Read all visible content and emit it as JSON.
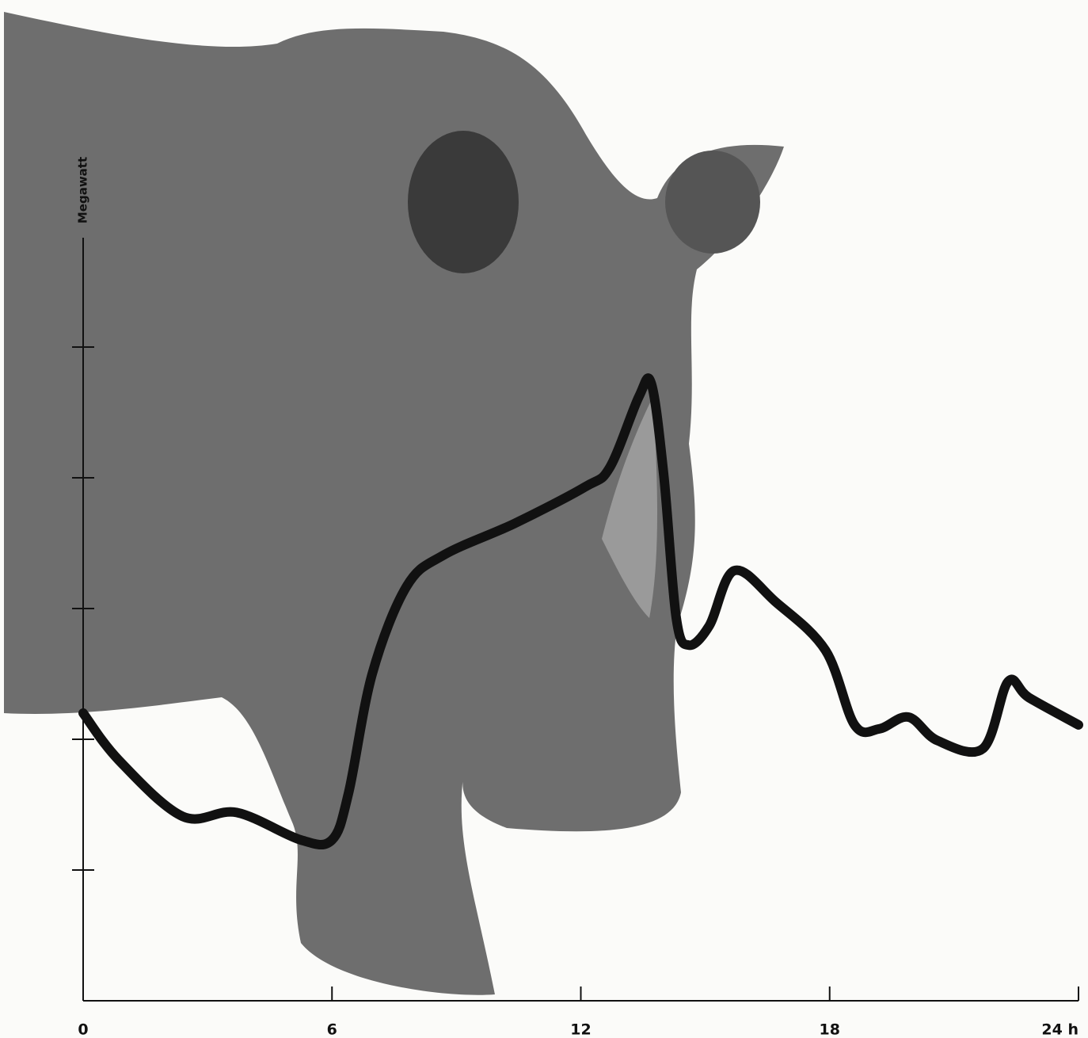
{
  "chart_data": {
    "type": "line",
    "y_label": "Megawatt",
    "x": [
      0,
      0.86,
      2.4,
      3.7,
      5.25,
      6.0,
      6.4,
      6.97,
      7.8,
      8.7,
      10.4,
      12.1,
      12.7,
      13.4,
      13.7,
      14.0,
      14.3,
      14.6,
      15.1,
      15.7,
      16.7,
      17.9,
      18.6,
      19.2,
      19.9,
      20.6,
      21.7,
      22.3,
      22.8,
      24.0
    ],
    "values": [
      2.2,
      1.84,
      1.41,
      1.44,
      1.23,
      1.23,
      1.59,
      2.5,
      3.17,
      3.41,
      3.65,
      3.93,
      4.08,
      4.62,
      4.72,
      4.02,
      2.93,
      2.72,
      2.87,
      3.29,
      3.05,
      2.68,
      2.11,
      2.08,
      2.17,
      1.99,
      1.93,
      2.44,
      2.32,
      2.11
    ],
    "color": "#111111",
    "xlim": [
      0,
      24
    ],
    "xticks": [
      0,
      6,
      12,
      18,
      {
        "value": 24,
        "label": "24 h"
      }
    ],
    "ylim": [
      0,
      5.85
    ],
    "yticks": [
      1,
      2,
      3,
      4,
      5
    ]
  }
}
